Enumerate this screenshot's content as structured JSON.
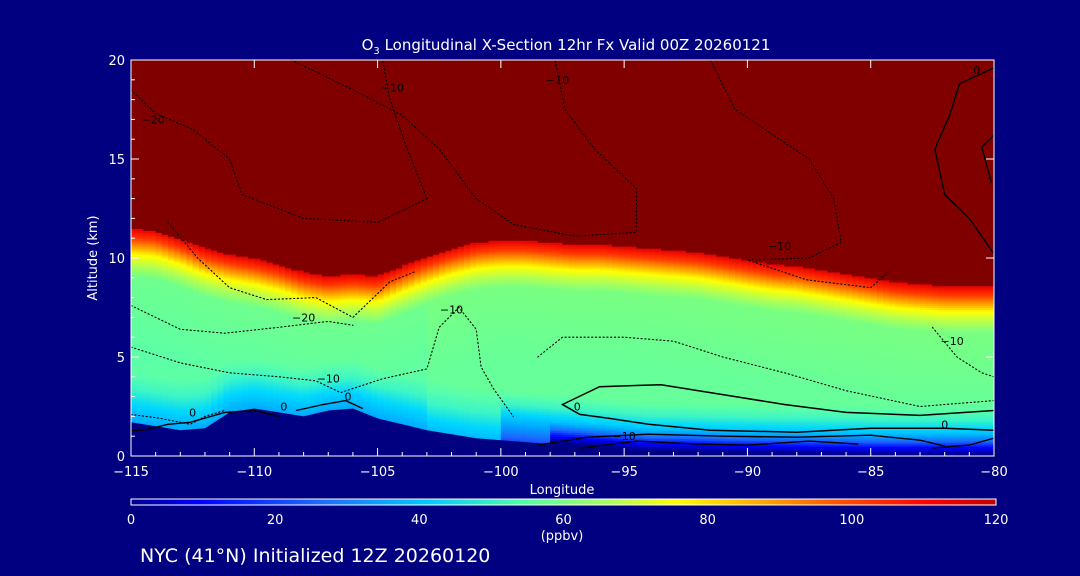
{
  "chart_data": {
    "type": "heatmap",
    "title": "O",
    "title_sub": "3",
    "title_rest": " Longitudinal X-Section 12hr  Fx Valid 00Z 20260121",
    "xlabel": "Longitude",
    "ylabel": "Altitude (km)",
    "xlim": [
      -115,
      -80
    ],
    "ylim": [
      0,
      20
    ],
    "xticks": [
      -115,
      -110,
      -105,
      -100,
      -95,
      -90,
      -85,
      -80
    ],
    "xtick_labels": [
      "−115",
      "−110",
      "−105",
      "−100",
      "−95",
      "−90",
      "−85",
      "−80"
    ],
    "yticks": [
      0,
      5,
      10,
      15,
      20
    ],
    "ytick_labels": [
      "0",
      "5",
      "10",
      "15",
      "20"
    ],
    "colorbar": {
      "label": "(ppbv)",
      "range": [
        0,
        120
      ],
      "ticks": [
        0,
        20,
        40,
        60,
        80,
        100,
        120
      ],
      "tick_labels": [
        "0",
        "20",
        "40",
        "60",
        "80",
        "100",
        "120"
      ]
    },
    "tropopause_km": [
      [
        -115,
        11.5
      ],
      [
        -114,
        11.4
      ],
      [
        -113,
        11.0
      ],
      [
        -112,
        10.5
      ],
      [
        -111,
        10.2
      ],
      [
        -110,
        10.0
      ],
      [
        -109,
        9.7
      ],
      [
        -108,
        9.3
      ],
      [
        -107,
        9.1
      ],
      [
        -106,
        9.2
      ],
      [
        -105,
        9.1
      ],
      [
        -104,
        9.6
      ],
      [
        -103,
        10.1
      ],
      [
        -102,
        10.5
      ],
      [
        -101,
        10.8
      ],
      [
        -100,
        10.9
      ],
      [
        -99,
        10.9
      ],
      [
        -98,
        10.8
      ],
      [
        -97,
        10.7
      ],
      [
        -96,
        10.7
      ],
      [
        -95,
        10.6
      ],
      [
        -94,
        10.5
      ],
      [
        -93,
        10.4
      ],
      [
        -92,
        10.3
      ],
      [
        -91,
        10.1
      ],
      [
        -90,
        9.9
      ],
      [
        -89,
        9.7
      ],
      [
        -88,
        9.6
      ],
      [
        -87,
        9.4
      ],
      [
        -86,
        9.2
      ],
      [
        -85,
        9.0
      ],
      [
        -84,
        8.8
      ],
      [
        -83,
        8.7
      ],
      [
        -82,
        8.6
      ],
      [
        -81,
        8.6
      ],
      [
        -80,
        8.6
      ]
    ],
    "surface_km": [
      [
        -115,
        1.7
      ],
      [
        -114,
        1.5
      ],
      [
        -113,
        1.3
      ],
      [
        -112,
        1.4
      ],
      [
        -111,
        2.2
      ],
      [
        -110,
        2.4
      ],
      [
        -109,
        2.2
      ],
      [
        -108,
        2.0
      ],
      [
        -107,
        2.3
      ],
      [
        -106,
        2.4
      ],
      [
        -105,
        1.9
      ],
      [
        -104,
        1.6
      ],
      [
        -103,
        1.3
      ],
      [
        -102,
        1.1
      ],
      [
        -101,
        0.9
      ],
      [
        -100,
        0.8
      ],
      [
        -99,
        0.7
      ],
      [
        -98,
        0.6
      ],
      [
        -97,
        0.5
      ],
      [
        -96,
        0.4
      ],
      [
        -95,
        0.3
      ],
      [
        -94,
        0.2
      ],
      [
        -93,
        0.2
      ],
      [
        -90,
        0.1
      ],
      [
        -85,
        0.0
      ],
      [
        -80,
        0.0
      ]
    ],
    "contour_labels": [
      {
        "text": "−20",
        "lon": -114.1,
        "alt": 16.8
      },
      {
        "text": "−10",
        "lon": -104.4,
        "alt": 18.4
      },
      {
        "text": "−10",
        "lon": -97.7,
        "alt": 18.8
      },
      {
        "text": "0",
        "lon": -80.7,
        "alt": 19.3
      },
      {
        "text": "−10",
        "lon": -88.7,
        "alt": 10.4
      },
      {
        "text": "−20",
        "lon": -108.0,
        "alt": 6.8
      },
      {
        "text": "−10",
        "lon": -102.0,
        "alt": 7.2
      },
      {
        "text": "−10",
        "lon": -81.7,
        "alt": 5.6
      },
      {
        "text": "−10",
        "lon": -107.0,
        "alt": 3.7
      },
      {
        "text": "0",
        "lon": -108.8,
        "alt": 2.3
      },
      {
        "text": "0",
        "lon": -106.2,
        "alt": 2.8
      },
      {
        "text": "0",
        "lon": -96.9,
        "alt": 2.3
      },
      {
        "text": "0",
        "lon": -82.0,
        "alt": 1.4
      },
      {
        "text": "−10",
        "lon": -95.0,
        "alt": 0.8
      },
      {
        "text": "0",
        "lon": -112.5,
        "alt": 2.0
      }
    ]
  },
  "footer": {
    "caption": "NYC (41°N) Initialized 12Z 20260120"
  },
  "colors": {
    "background": "#000080",
    "text": "#ffffff",
    "stratosphere": "#800000",
    "terrain": "#000080",
    "contour": "#000000"
  }
}
